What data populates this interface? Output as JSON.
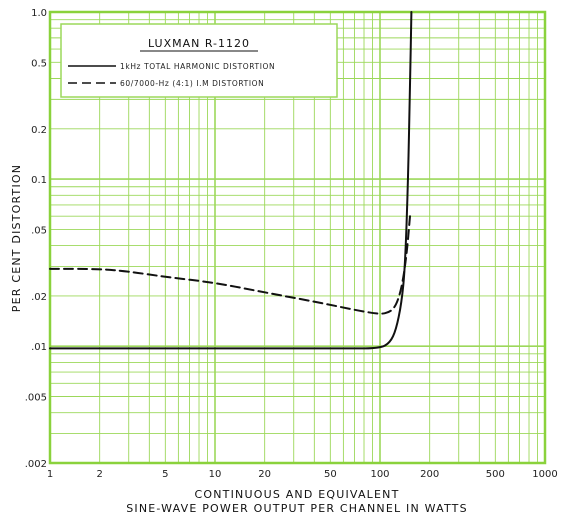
{
  "chart_data": {
    "type": "line",
    "title": "LUXMAN R-1120",
    "xlabel_line1": "CONTINUOUS AND EQUIVALENT",
    "xlabel_line2": "SINE-WAVE POWER OUTPUT PER CHANNEL IN WATTS",
    "ylabel": "PER CENT DISTORTION",
    "x_scale": "log",
    "y_scale": "log",
    "xlim": [
      1,
      1000
    ],
    "ylim": [
      0.002,
      1.0
    ],
    "x_ticks": [
      {
        "value": 1,
        "label": "1"
      },
      {
        "value": 2,
        "label": "2"
      },
      {
        "value": 5,
        "label": "5"
      },
      {
        "value": 10,
        "label": "10"
      },
      {
        "value": 20,
        "label": "20"
      },
      {
        "value": 50,
        "label": "50"
      },
      {
        "value": 100,
        "label": "100"
      },
      {
        "value": 200,
        "label": "200"
      },
      {
        "value": 500,
        "label": "500"
      },
      {
        "value": 1000,
        "label": "1000"
      }
    ],
    "y_ticks": [
      {
        "value": 0.002,
        "label": ".002"
      },
      {
        "value": 0.005,
        "label": ".005"
      },
      {
        "value": 0.01,
        "label": ".01"
      },
      {
        "value": 0.02,
        "label": ".02"
      },
      {
        "value": 0.05,
        "label": ".05"
      },
      {
        "value": 0.1,
        "label": "0.1"
      },
      {
        "value": 0.2,
        "label": "0.2"
      },
      {
        "value": 0.5,
        "label": "0.5"
      },
      {
        "value": 1.0,
        "label": "1.0"
      }
    ],
    "grid": true,
    "legend_position": "top-left",
    "series": [
      {
        "name": "1kHz TOTAL HARMONIC DISTORTION",
        "style": "solid",
        "x": [
          1,
          5,
          20,
          60,
          100,
          115,
          125,
          135,
          142,
          148,
          152,
          155
        ],
        "y": [
          0.0097,
          0.0097,
          0.0097,
          0.0097,
          0.0097,
          0.0105,
          0.0125,
          0.018,
          0.03,
          0.1,
          0.35,
          1.0
        ]
      },
      {
        "name": "60/7000-Hz (4:1) I.M DISTORTION",
        "style": "dashed",
        "x": [
          1,
          2,
          3,
          5,
          10,
          20,
          40,
          70,
          100,
          115,
          125,
          135,
          145,
          152
        ],
        "y": [
          0.029,
          0.029,
          0.028,
          0.026,
          0.024,
          0.021,
          0.0185,
          0.0165,
          0.0155,
          0.016,
          0.0175,
          0.022,
          0.035,
          0.06
        ]
      }
    ]
  },
  "colors": {
    "grid": "#9cd85a",
    "frame": "#8ad23c",
    "curve": "#111111",
    "background": "#ffffff"
  }
}
